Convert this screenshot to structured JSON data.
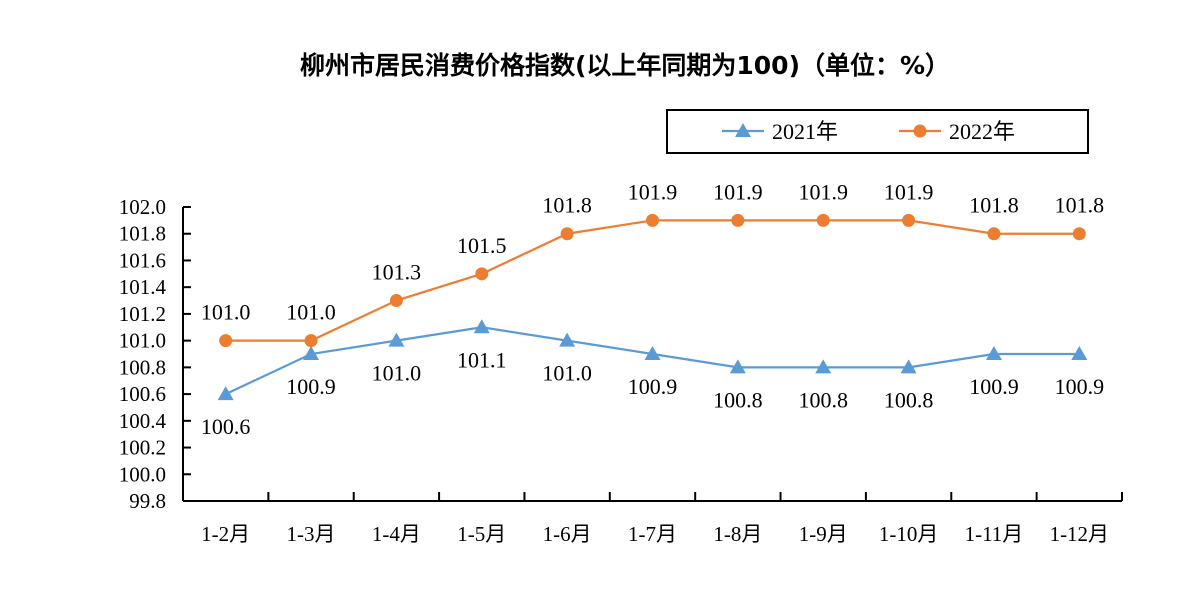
{
  "chart_data": {
    "type": "line",
    "title": "柳州市居民消费价格指数(以上年同期为100)（单位：%）",
    "xlabel": "",
    "ylabel": "",
    "categories": [
      "1-2月",
      "1-3月",
      "1-4月",
      "1-5月",
      "1-6月",
      "1-7月",
      "1-8月",
      "1-9月",
      "1-10月",
      "1-11月",
      "1-12月"
    ],
    "ylim": [
      99.8,
      102.0
    ],
    "yticks": [
      "102.0",
      "101.8",
      "101.6",
      "101.4",
      "101.2",
      "101.0",
      "100.8",
      "100.6",
      "100.4",
      "100.2",
      "100.0",
      "99.8"
    ],
    "ytick_values": [
      102.0,
      101.8,
      101.6,
      101.4,
      101.2,
      101.0,
      100.8,
      100.6,
      100.4,
      100.2,
      100.0,
      99.8
    ],
    "grid": false,
    "legend_position": "top-right",
    "series": [
      {
        "name": "2021年",
        "color": "#5B9BD5",
        "marker": "triangle",
        "label_position": "below",
        "values": [
          100.6,
          100.9,
          101.0,
          101.1,
          101.0,
          100.9,
          100.8,
          100.8,
          100.8,
          100.9,
          100.9
        ],
        "labels": [
          "100.6",
          "100.9",
          "101.0",
          "101.1",
          "101.0",
          "100.9",
          "100.8",
          "100.8",
          "100.8",
          "100.9",
          "100.9"
        ]
      },
      {
        "name": "2022年",
        "color": "#ED7D31",
        "marker": "circle",
        "label_position": "above",
        "values": [
          101.0,
          101.0,
          101.3,
          101.5,
          101.8,
          101.9,
          101.9,
          101.9,
          101.9,
          101.8,
          101.8
        ],
        "labels": [
          "101.0",
          "101.0",
          "101.3",
          "101.5",
          "101.8",
          "101.9",
          "101.9",
          "101.9",
          "101.9",
          "101.8",
          "101.8"
        ]
      }
    ]
  }
}
